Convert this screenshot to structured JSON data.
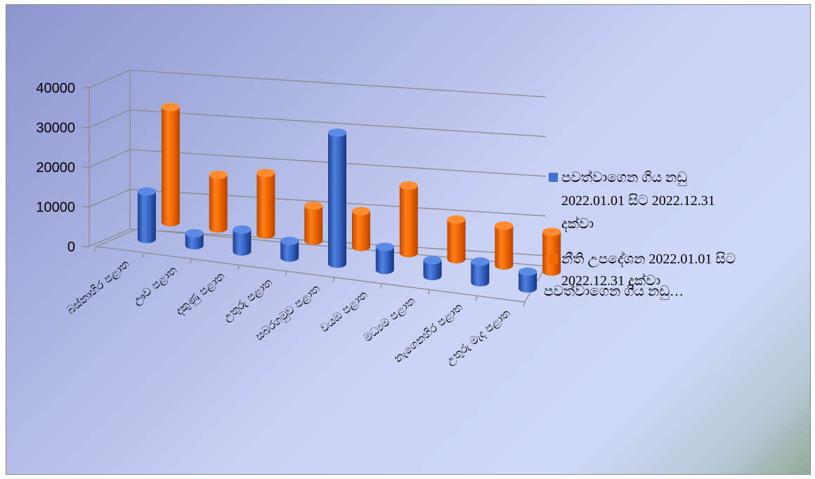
{
  "chart_data": {
    "type": "bar",
    "style": "3d-cylinder",
    "ylim": [
      0,
      40000
    ],
    "y_ticks": [
      "0",
      "10000",
      "20000",
      "30000",
      "40000"
    ],
    "categories": [
      "බස්නාහිර පළාත",
      "ඌව පළාත",
      "දකුණු පළාත",
      "උතුරු පළාත",
      "සබරගමුව පළාත",
      "වයඹ පළාත",
      "මධ්‍යම පළාත",
      "නැගෙනහිර පළාත",
      "උතුරු මැද පළාත"
    ],
    "series": [
      {
        "name": "පවත්වාගෙන ගිය නඩු 2022.01.01 සිට 2022.12.31 දක්වා",
        "color": "#3f6fcf",
        "values": [
          12000,
          3000,
          5500,
          4200,
          33000,
          5800,
          4000,
          5200,
          4200
        ]
      },
      {
        "name": "නීති උපදේශන 2022.01.01 සිට 2022.12.31 දක්වා",
        "color": "#f56a00",
        "values": [
          29000,
          13500,
          15500,
          8800,
          9000,
          17000,
          10000,
          10000,
          10000
        ]
      }
    ],
    "legend_position": "right",
    "depth_axis_label": "පවත්වාගෙන ගිය නඩු…",
    "grid": true
  },
  "legend": {
    "item1_line1": "පවත්වාගෙන ගිය නඩු",
    "item1_line2": "2022.01.01 සිට 2022.12.31",
    "item1_line3": "දක්වා",
    "item2_line1": "නීති උපදේශන 2022.01.01 සිට",
    "item2_line2": "2022.12.31 දක්වා"
  }
}
